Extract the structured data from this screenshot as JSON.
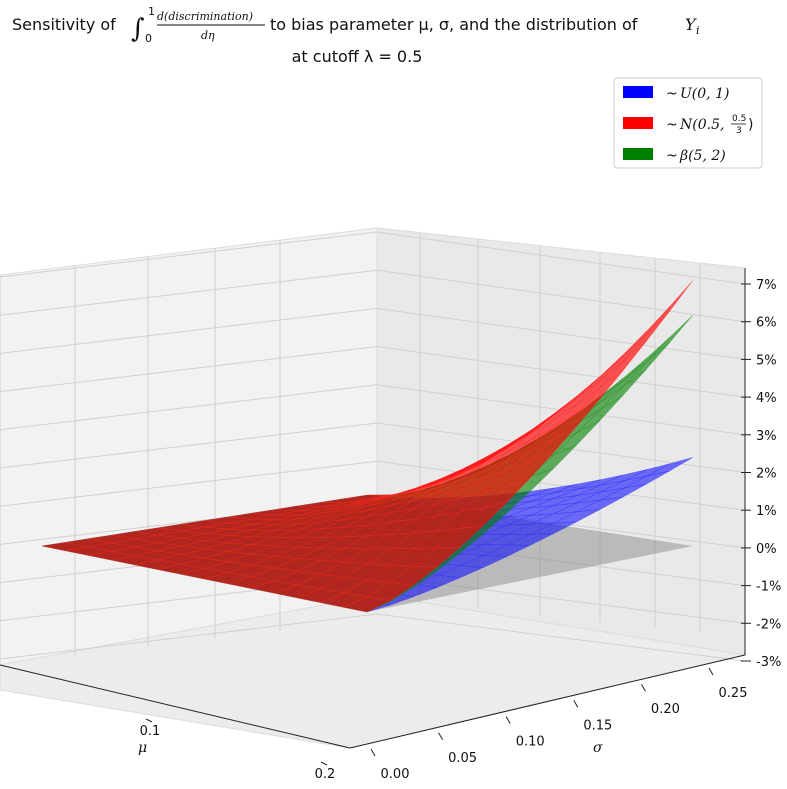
{
  "chart_data": {
    "type": "surface3d",
    "title": {
      "line1_prefix": "Sensitivity of",
      "integral_upper": "1",
      "integral_lower": "0",
      "fraction_numerator": "d(discrimination)",
      "fraction_denominator": "dη",
      "line1_middle": "to bias parameter μ, σ, and the distribution of",
      "line1_end_symbol": "Y",
      "line1_end_subscript": "i",
      "line2": "at cutoff λ = 0.5"
    },
    "xlabel": "μ",
    "ylabel": "σ",
    "x_ticks": [
      "0.1",
      "0.2"
    ],
    "y_ticks": [
      "0.00",
      "0.05",
      "0.10",
      "0.15",
      "0.20",
      "0.25"
    ],
    "z_ticks": [
      "7%",
      "6%",
      "5%",
      "4%",
      "3%",
      "2%",
      "1%",
      "0%",
      "-1%",
      "-2%",
      "-3%"
    ],
    "xlim": [
      0.0,
      0.2
    ],
    "ylim": [
      0.0,
      0.25
    ],
    "zlim": [
      -0.03,
      0.07
    ],
    "grid": true,
    "legend_placement": "top-right",
    "series": [
      {
        "legend_prefix": "~",
        "name": "U(0, 1)",
        "color": "#0000ff",
        "corner_max_value": 0.023
      },
      {
        "legend_prefix": "~",
        "name": "N(0.5, 0.5/3)",
        "name_base": "N(0.5,",
        "name_frac_num": "0.5",
        "name_frac_den": "3",
        "color": "#ff0000",
        "corner_max_value": 0.069
      },
      {
        "legend_prefix": "~",
        "name": "β(5, 2)",
        "color": "#008000",
        "corner_max_value": 0.06
      }
    ],
    "zero_plane_color": "#808080"
  }
}
